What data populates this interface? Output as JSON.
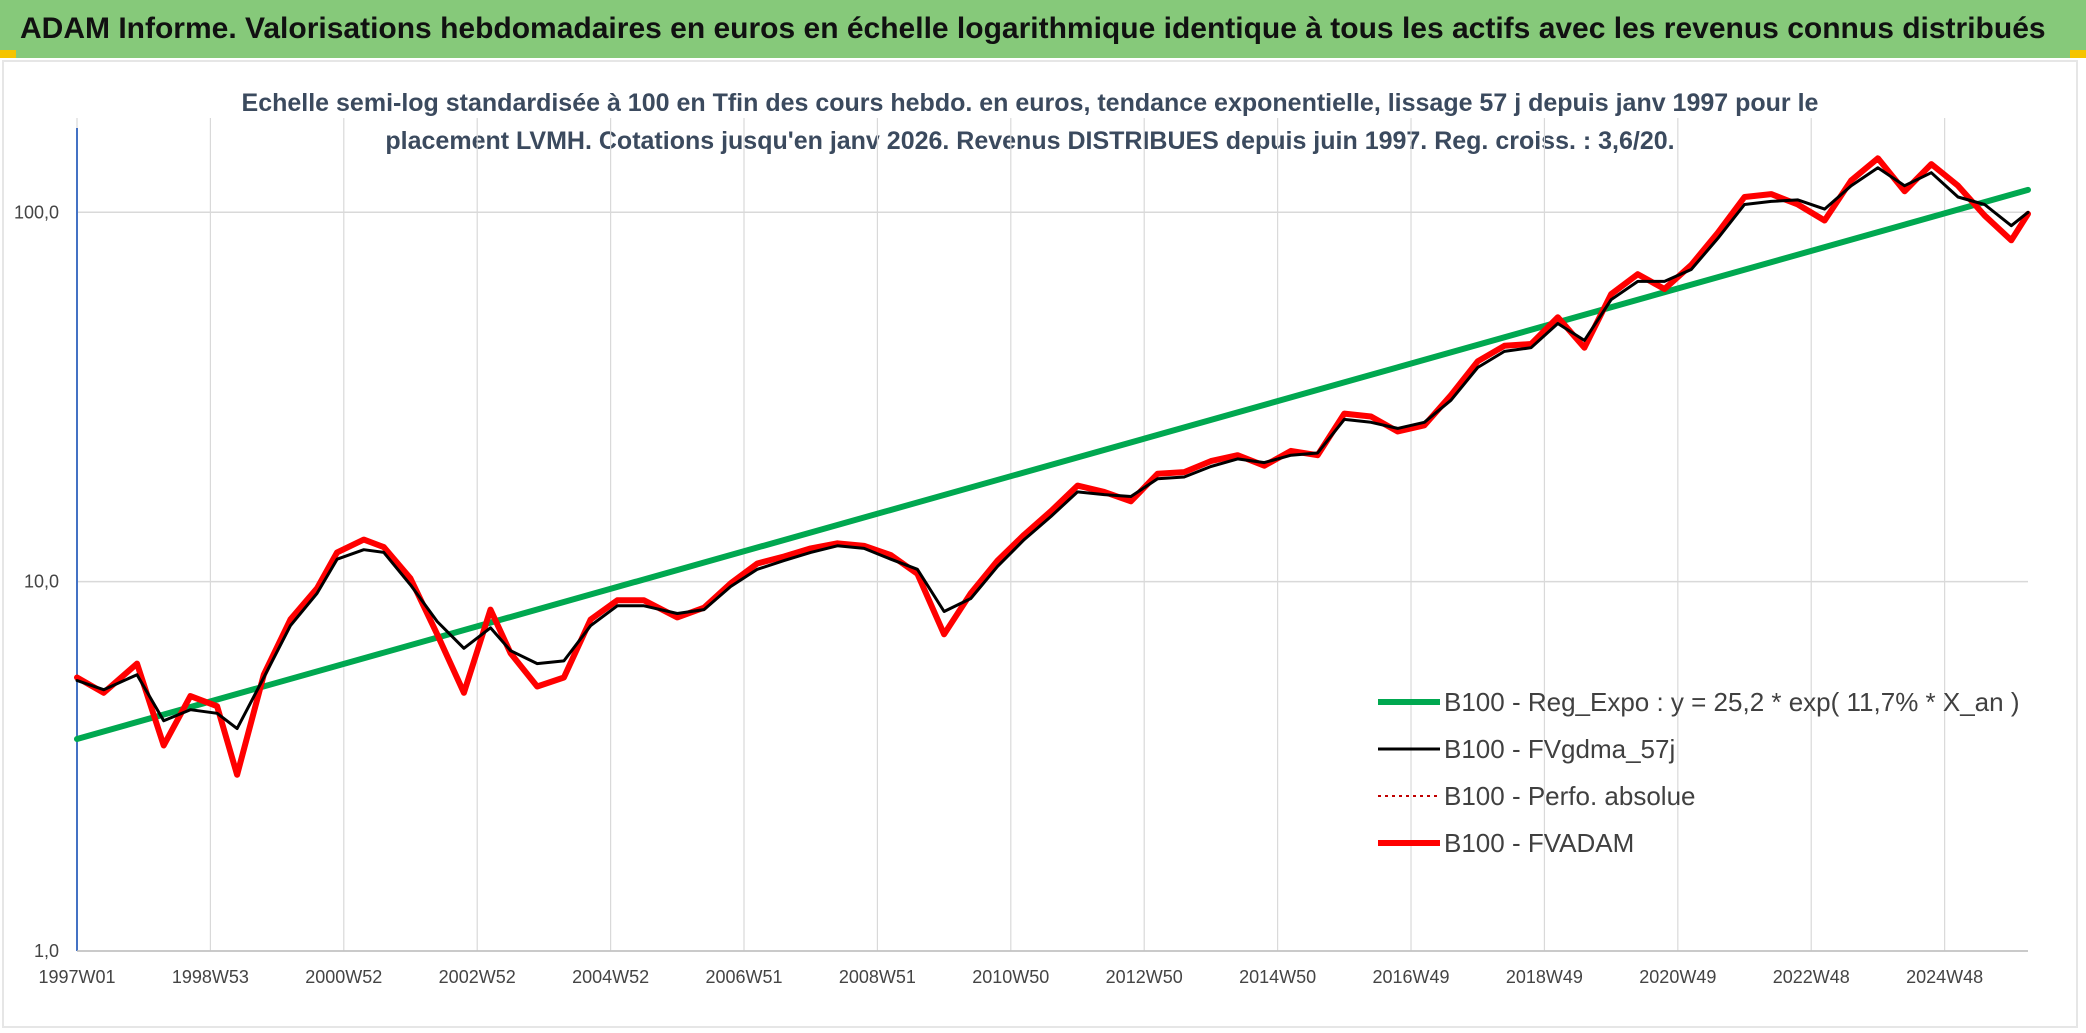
{
  "header": {
    "banner_title": "ADAM Informe. Valorisations hebdomadaires en euros en échelle logarithmique identique à tous les actifs avec les revenus connus distribués"
  },
  "colors": {
    "banner_bg": "#86c97a",
    "regression": "#00a850",
    "smoothed": "#000000",
    "perf_absolue": "#c00000",
    "fvadam": "#ff0000",
    "grid": "#d9d9d9",
    "axis": "#4472c4"
  },
  "chart_data": {
    "type": "line",
    "title_lines": [
      "Echelle semi-log standardisée à 100 en Tfin des cours hebdo. en euros, tendance exponentielle, lissage 57 j depuis janv 1997 pour le",
      "placement LVMH. Cotations jusqu'en janv 2026. Revenus DISTRIBUES depuis juin 1997. Reg. croiss. : 3,6/20."
    ],
    "y_scale": "log",
    "ylim": [
      1,
      180
    ],
    "y_ticks": [
      {
        "value": 1,
        "label": "1,0"
      },
      {
        "value": 10,
        "label": "10,0"
      },
      {
        "value": 100,
        "label": "100,0"
      }
    ],
    "xlim": [
      1997.0,
      2026.25
    ],
    "x_ticks": [
      {
        "value": 1997.0,
        "label": "1997W01"
      },
      {
        "value": 1999.0,
        "label": "1998W53"
      },
      {
        "value": 2001.0,
        "label": "2000W52"
      },
      {
        "value": 2003.0,
        "label": "2002W52"
      },
      {
        "value": 2005.0,
        "label": "2004W52"
      },
      {
        "value": 2007.0,
        "label": "2006W51"
      },
      {
        "value": 2009.0,
        "label": "2008W51"
      },
      {
        "value": 2011.0,
        "label": "2010W50"
      },
      {
        "value": 2013.0,
        "label": "2012W50"
      },
      {
        "value": 2015.0,
        "label": "2014W50"
      },
      {
        "value": 2017.0,
        "label": "2016W49"
      },
      {
        "value": 2019.0,
        "label": "2018W49"
      },
      {
        "value": 2021.0,
        "label": "2020W49"
      },
      {
        "value": 2023.0,
        "label": "2022W48"
      },
      {
        "value": 2025.0,
        "label": "2024W48"
      }
    ],
    "grid": true,
    "legend_position": "bottom-right",
    "series": [
      {
        "name": "B100 - Reg_Expo : y = 25,2 * exp( 11,7% *  X_an )",
        "style": "solid-thick",
        "points": [
          [
            1997.0,
            3.75
          ],
          [
            2026.25,
            115
          ]
        ]
      },
      {
        "name": "B100 - FVgdma_57j",
        "style": "solid-thin",
        "points": [
          [
            1997.0,
            5.4
          ],
          [
            1997.4,
            5.1
          ],
          [
            1997.9,
            5.6
          ],
          [
            1998.3,
            4.2
          ],
          [
            1998.7,
            4.5
          ],
          [
            1999.1,
            4.4
          ],
          [
            1999.4,
            4.0
          ],
          [
            1999.8,
            5.5
          ],
          [
            2000.2,
            7.6
          ],
          [
            2000.6,
            9.3
          ],
          [
            2000.9,
            11.5
          ],
          [
            2001.3,
            12.2
          ],
          [
            2001.6,
            12.0
          ],
          [
            2002.0,
            9.8
          ],
          [
            2002.4,
            7.8
          ],
          [
            2002.8,
            6.6
          ],
          [
            2003.2,
            7.5
          ],
          [
            2003.5,
            6.5
          ],
          [
            2003.9,
            6.0
          ],
          [
            2004.3,
            6.1
          ],
          [
            2004.7,
            7.6
          ],
          [
            2005.1,
            8.6
          ],
          [
            2005.5,
            8.6
          ],
          [
            2006.0,
            8.2
          ],
          [
            2006.4,
            8.4
          ],
          [
            2006.8,
            9.7
          ],
          [
            2007.2,
            10.8
          ],
          [
            2007.6,
            11.4
          ],
          [
            2008.0,
            12.0
          ],
          [
            2008.4,
            12.5
          ],
          [
            2008.8,
            12.3
          ],
          [
            2009.2,
            11.5
          ],
          [
            2009.6,
            10.8
          ],
          [
            2010.0,
            8.3
          ],
          [
            2010.4,
            9.0
          ],
          [
            2010.8,
            11.0
          ],
          [
            2011.2,
            13.0
          ],
          [
            2011.6,
            15.0
          ],
          [
            2012.0,
            17.5
          ],
          [
            2012.4,
            17.2
          ],
          [
            2012.8,
            17.0
          ],
          [
            2013.2,
            19.0
          ],
          [
            2013.6,
            19.2
          ],
          [
            2014.0,
            20.5
          ],
          [
            2014.4,
            21.5
          ],
          [
            2014.8,
            21.0
          ],
          [
            2015.2,
            22.0
          ],
          [
            2015.6,
            22.3
          ],
          [
            2016.0,
            27.5
          ],
          [
            2016.4,
            27.0
          ],
          [
            2016.8,
            26.0
          ],
          [
            2017.2,
            27.0
          ],
          [
            2017.6,
            31.0
          ],
          [
            2018.0,
            38.0
          ],
          [
            2018.4,
            42.0
          ],
          [
            2018.8,
            43.0
          ],
          [
            2019.2,
            50.0
          ],
          [
            2019.6,
            45.0
          ],
          [
            2020.0,
            58.0
          ],
          [
            2020.4,
            65.0
          ],
          [
            2020.8,
            65.0
          ],
          [
            2021.2,
            70.0
          ],
          [
            2021.6,
            85.0
          ],
          [
            2022.0,
            105.0
          ],
          [
            2022.4,
            107.0
          ],
          [
            2022.8,
            108.0
          ],
          [
            2023.2,
            102.0
          ],
          [
            2023.6,
            118.0
          ],
          [
            2024.0,
            132.0
          ],
          [
            2024.4,
            118.0
          ],
          [
            2024.8,
            128.0
          ],
          [
            2025.2,
            110.0
          ],
          [
            2025.6,
            105.0
          ],
          [
            2026.0,
            92.0
          ],
          [
            2026.25,
            100.0
          ]
        ]
      },
      {
        "name": "B100 - Perfo. absolue",
        "style": "dotted",
        "points": []
      },
      {
        "name": "B100 - FVADAM",
        "style": "solid-thick",
        "points": [
          [
            1997.0,
            5.5
          ],
          [
            1997.4,
            5.0
          ],
          [
            1997.9,
            6.0
          ],
          [
            1998.3,
            3.6
          ],
          [
            1998.7,
            4.9
          ],
          [
            1999.1,
            4.6
          ],
          [
            1999.4,
            3.0
          ],
          [
            1999.8,
            5.6
          ],
          [
            2000.2,
            7.9
          ],
          [
            2000.6,
            9.6
          ],
          [
            2000.9,
            12.0
          ],
          [
            2001.3,
            13.0
          ],
          [
            2001.6,
            12.4
          ],
          [
            2002.0,
            10.2
          ],
          [
            2002.4,
            7.2
          ],
          [
            2002.8,
            5.0
          ],
          [
            2003.2,
            8.4
          ],
          [
            2003.5,
            6.4
          ],
          [
            2003.9,
            5.2
          ],
          [
            2004.3,
            5.5
          ],
          [
            2004.7,
            7.9
          ],
          [
            2005.1,
            8.9
          ],
          [
            2005.5,
            8.9
          ],
          [
            2006.0,
            8.0
          ],
          [
            2006.4,
            8.5
          ],
          [
            2006.8,
            9.9
          ],
          [
            2007.2,
            11.2
          ],
          [
            2007.6,
            11.7
          ],
          [
            2008.0,
            12.3
          ],
          [
            2008.4,
            12.7
          ],
          [
            2008.8,
            12.5
          ],
          [
            2009.2,
            11.8
          ],
          [
            2009.6,
            10.5
          ],
          [
            2010.0,
            7.2
          ],
          [
            2010.4,
            9.3
          ],
          [
            2010.8,
            11.4
          ],
          [
            2011.2,
            13.4
          ],
          [
            2011.6,
            15.5
          ],
          [
            2012.0,
            18.2
          ],
          [
            2012.4,
            17.5
          ],
          [
            2012.8,
            16.5
          ],
          [
            2013.2,
            19.6
          ],
          [
            2013.6,
            19.8
          ],
          [
            2014.0,
            21.2
          ],
          [
            2014.4,
            22.0
          ],
          [
            2014.8,
            20.6
          ],
          [
            2015.2,
            22.6
          ],
          [
            2015.6,
            22.0
          ],
          [
            2016.0,
            28.5
          ],
          [
            2016.4,
            28.0
          ],
          [
            2016.8,
            25.5
          ],
          [
            2017.2,
            26.5
          ],
          [
            2017.6,
            32.0
          ],
          [
            2018.0,
            39.5
          ],
          [
            2018.4,
            43.5
          ],
          [
            2018.8,
            44.0
          ],
          [
            2019.2,
            52.0
          ],
          [
            2019.6,
            43.0
          ],
          [
            2020.0,
            60.0
          ],
          [
            2020.4,
            68.0
          ],
          [
            2020.8,
            62.0
          ],
          [
            2021.2,
            72.0
          ],
          [
            2021.6,
            88.0
          ],
          [
            2022.0,
            110.0
          ],
          [
            2022.4,
            112.0
          ],
          [
            2022.8,
            105.0
          ],
          [
            2023.2,
            95.0
          ],
          [
            2023.6,
            122.0
          ],
          [
            2024.0,
            140.0
          ],
          [
            2024.4,
            114.0
          ],
          [
            2024.8,
            135.0
          ],
          [
            2025.2,
            118.0
          ],
          [
            2025.6,
            98.0
          ],
          [
            2026.0,
            84.0
          ],
          [
            2026.25,
            99.0
          ]
        ]
      }
    ]
  }
}
